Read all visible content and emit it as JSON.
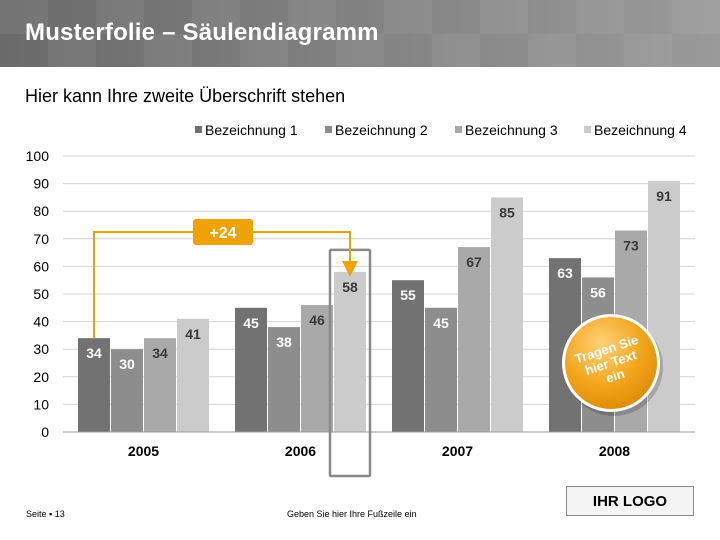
{
  "header": {
    "title": "Musterfolie – Säulendiagramm"
  },
  "subtitle": "Hier kann Ihre zweite Überschrift stehen",
  "chart_data": {
    "type": "bar",
    "categories": [
      "2005",
      "2006",
      "2007",
      "2008"
    ],
    "series": [
      {
        "name": "Bezeichnung 1",
        "values": [
          34,
          45,
          55,
          63
        ],
        "color": "#727272"
      },
      {
        "name": "Bezeichnung 2",
        "values": [
          30,
          38,
          45,
          56
        ],
        "color": "#8d8d8d"
      },
      {
        "name": "Bezeichnung 3",
        "values": [
          34,
          46,
          67,
          73
        ],
        "color": "#a9a9a9"
      },
      {
        "name": "Bezeichnung 4",
        "values": [
          41,
          58,
          85,
          91
        ],
        "color": "#cbcbcb"
      }
    ],
    "ylim": [
      0,
      100
    ],
    "yticks": [
      0,
      10,
      20,
      30,
      40,
      50,
      60,
      70,
      80,
      90,
      100
    ],
    "grid": true,
    "legend": "top-right",
    "annotation": {
      "label": "+24",
      "from": [
        0,
        0
      ],
      "to": [
        1,
        3
      ],
      "color": "#f0a300"
    }
  },
  "badge": {
    "text": "Tragen Sie hier Text ein",
    "color": "#f0a300"
  },
  "footer": {
    "page": "Seite ▪ 13",
    "text": "Geben Sie hier Ihre Fußzeile ein"
  },
  "logo": "IHR LOGO"
}
